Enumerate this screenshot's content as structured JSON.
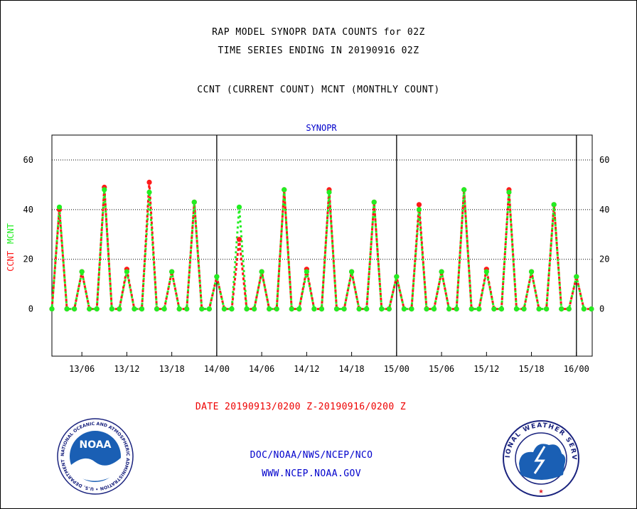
{
  "header": {
    "title_line1": "RAP MODEL SYNOPR DATA COUNTS for 02Z",
    "title_line2": "TIME SERIES ENDING IN 20190916 02Z",
    "subtitle": "CCNT (CURRENT COUNT) MCNT (MONTHLY COUNT)"
  },
  "colors": {
    "ccnt": "#ff1a1a",
    "mcnt": "#22ee22",
    "series_label": "#0000cc",
    "date_label": "#ee0000",
    "footer": "#0000cc"
  },
  "chart_data": {
    "type": "line",
    "title": "SYNOPR",
    "ylabel_parts": [
      "CCNT",
      "MCNT"
    ],
    "ylim": [
      -19,
      70
    ],
    "yticks": [
      0,
      20,
      40,
      60
    ],
    "grid_y": true,
    "x_count": 73,
    "x_ticks": [
      {
        "index": 4,
        "label": "13/06"
      },
      {
        "index": 10,
        "label": "13/12"
      },
      {
        "index": 16,
        "label": "13/18"
      },
      {
        "index": 22,
        "label": "14/00"
      },
      {
        "index": 28,
        "label": "14/06"
      },
      {
        "index": 34,
        "label": "14/12"
      },
      {
        "index": 40,
        "label": "14/18"
      },
      {
        "index": 46,
        "label": "15/00"
      },
      {
        "index": 52,
        "label": "15/06"
      },
      {
        "index": 58,
        "label": "15/12"
      },
      {
        "index": 64,
        "label": "15/18"
      },
      {
        "index": 70,
        "label": "16/00"
      }
    ],
    "day_boundaries": [
      22,
      46,
      70
    ],
    "series": [
      {
        "name": "CCNT",
        "color": "#ff1a1a",
        "values": [
          0,
          40,
          0,
          0,
          15,
          0,
          0,
          49,
          0,
          0,
          16,
          0,
          0,
          51,
          0,
          0,
          15,
          0,
          0,
          43,
          0,
          0,
          13,
          0,
          0,
          28,
          0,
          0,
          15,
          0,
          0,
          48,
          0,
          0,
          16,
          0,
          0,
          48,
          0,
          0,
          15,
          0,
          0,
          43,
          0,
          0,
          13,
          0,
          0,
          42,
          0,
          0,
          15,
          0,
          0,
          48,
          0,
          0,
          16,
          0,
          0,
          48,
          0,
          0,
          15,
          0,
          0,
          42,
          0,
          0,
          13,
          0,
          0
        ]
      },
      {
        "name": "MCNT",
        "color": "#22ee22",
        "values": [
          0,
          41,
          0,
          0,
          15,
          0,
          0,
          48,
          0,
          0,
          15,
          0,
          0,
          47,
          0,
          0,
          15,
          0,
          0,
          43,
          0,
          0,
          13,
          0,
          0,
          41,
          0,
          0,
          15,
          0,
          0,
          48,
          0,
          0,
          15,
          0,
          0,
          47,
          0,
          0,
          15,
          0,
          0,
          43,
          0,
          0,
          13,
          0,
          0,
          40,
          0,
          0,
          15,
          0,
          0,
          48,
          0,
          0,
          15,
          0,
          0,
          47,
          0,
          0,
          15,
          0,
          0,
          42,
          0,
          0,
          13,
          0,
          0
        ]
      }
    ]
  },
  "footer": {
    "date_range": "DATE 20190913/0200 Z-20190916/0200 Z",
    "org": "DOC/NOAA/NWS/NCEP/NCO",
    "url": "WWW.NCEP.NOAA.GOV"
  },
  "logos": {
    "noaa_text": "NOAA",
    "noaa_ring": "NATIONAL OCEANIC AND ATMOSPHERIC ADMINISTRATION • U.S. DEPARTMENT OF COMMERCE •",
    "nws_ring": "NATIONAL WEATHER SERVICE"
  }
}
